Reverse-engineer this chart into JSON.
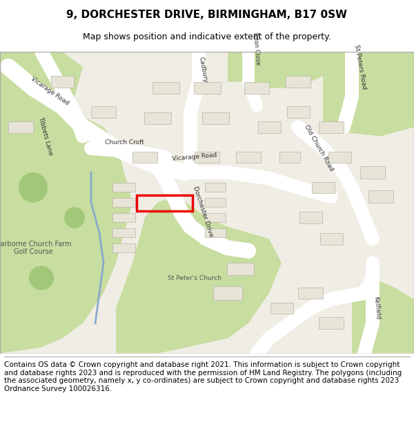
{
  "title": "9, DORCHESTER DRIVE, BIRMINGHAM, B17 0SW",
  "subtitle": "Map shows position and indicative extent of the property.",
  "footer_text": "Contains OS data © Crown copyright and database right 2021. This information is subject to Crown copyright and database rights 2023 and is reproduced with the permission of HM Land Registry. The polygons (including the associated geometry, namely x, y co-ordinates) are subject to Crown copyright and database rights 2023 Ordnance Survey 100026316.",
  "title_fontsize": 11,
  "subtitle_fontsize": 9,
  "footer_fontsize": 7.5,
  "map_bg": "#f0ede5",
  "title_color": "#000000",
  "footer_color": "#000000"
}
